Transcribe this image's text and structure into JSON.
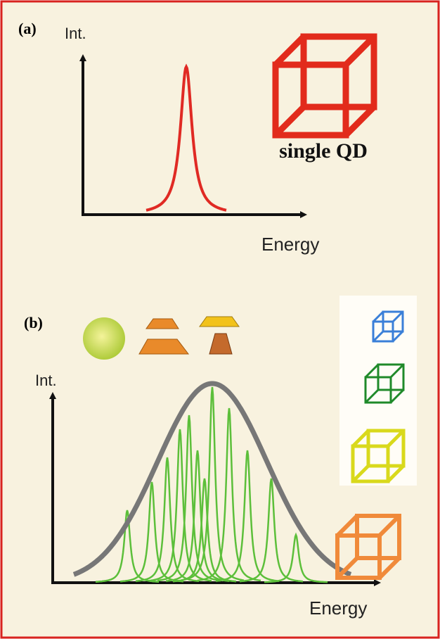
{
  "panel_a": {
    "label": "(a)",
    "y_axis": "Int.",
    "x_axis": "Energy",
    "caption": "single QD"
  },
  "panel_b": {
    "label": "(b)",
    "y_axis": "Int.",
    "x_axis": "Energy"
  }
}
